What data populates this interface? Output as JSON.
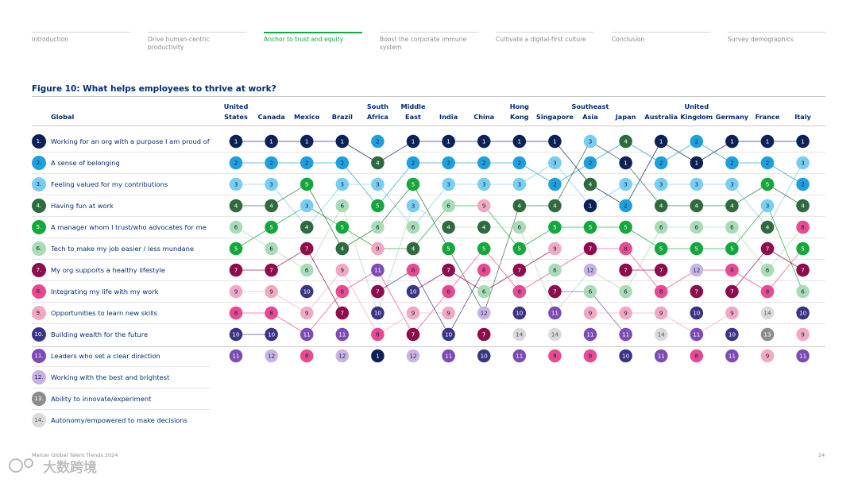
{
  "nav": {
    "tabs": [
      {
        "label": "Introduction",
        "active": false
      },
      {
        "label": "Drive human-centric productivity",
        "active": false
      },
      {
        "label": "Anchor to trust and equity",
        "active": true
      },
      {
        "label": "Boost the corporate immune system",
        "active": false
      },
      {
        "label": "Cultivate a digital-first culture",
        "active": false
      },
      {
        "label": "Conclusion",
        "active": false
      },
      {
        "label": "Survey demographics",
        "active": false
      }
    ]
  },
  "figure_title": "Figure 10: What helps employees to thrive at work?",
  "footer": "Mercer Global Talent Trends 2024",
  "page_number": "24",
  "watermark_text": "大数跨境",
  "chart_data": {
    "type": "table",
    "title": "Figure 10: What helps employees to thrive at work?",
    "row_header": "Global",
    "rank_colors": {
      "1": "#0b2258",
      "2": "#1fa0dd",
      "3": "#78cdf0",
      "4": "#2e6b3e",
      "5": "#14a83c",
      "6": "#a9dbb4",
      "7": "#8d0c4b",
      "8": "#e84a8e",
      "9": "#f3a8c2",
      "10": "#3b3486",
      "11": "#7c4bb5",
      "12": "#c9b3e2",
      "13": "#8c8c8c",
      "14": "#d9d9d9"
    },
    "factors": [
      "Working for an org with a purpose I am proud of",
      "A sense of belonging",
      "Feeling valued for my contributions",
      "Having fun at work",
      "A manager whom I trust/who advocates for me",
      "Tech to make my job easier / less mundane",
      "My org supports a healthy lifestyle",
      "Integrating my life with my work",
      "Opportunities to learn new skills",
      "Building wealth for the future",
      "Leaders who set a clear direction",
      "Working with the best and brightest",
      "Ability to innovate/experiment",
      "Autonomy/empowered to make decisions"
    ],
    "countries": [
      {
        "name": "United States",
        "ranks": [
          1,
          2,
          3,
          4,
          6,
          5,
          7,
          9,
          8,
          10,
          11
        ]
      },
      {
        "name": "Canada",
        "ranks": [
          1,
          2,
          3,
          4,
          5,
          6,
          7,
          9,
          8,
          10,
          12
        ]
      },
      {
        "name": "Mexico",
        "ranks": [
          1,
          2,
          5,
          3,
          4,
          7,
          6,
          10,
          9,
          11,
          8
        ]
      },
      {
        "name": "Brazil",
        "ranks": [
          1,
          2,
          3,
          6,
          5,
          4,
          9,
          8,
          7,
          11,
          12
        ]
      },
      {
        "name": "South Africa",
        "ranks": [
          2,
          4,
          3,
          5,
          6,
          9,
          11,
          7,
          10,
          8,
          1
        ]
      },
      {
        "name": "Middle East",
        "ranks": [
          1,
          2,
          5,
          3,
          6,
          4,
          8,
          10,
          9,
          7,
          12
        ]
      },
      {
        "name": "India",
        "ranks": [
          1,
          2,
          3,
          6,
          4,
          5,
          7,
          8,
          9,
          10,
          11
        ]
      },
      {
        "name": "China",
        "ranks": [
          1,
          2,
          3,
          9,
          4,
          5,
          8,
          6,
          12,
          7,
          10
        ]
      },
      {
        "name": "Hong Kong",
        "ranks": [
          1,
          2,
          3,
          4,
          6,
          5,
          7,
          8,
          10,
          14,
          11
        ]
      },
      {
        "name": "Singapore",
        "ranks": [
          1,
          3,
          2,
          4,
          5,
          9,
          6,
          7,
          11,
          14,
          8
        ]
      },
      {
        "name": "Southeast Asia",
        "ranks": [
          3,
          2,
          4,
          1,
          5,
          7,
          12,
          6,
          9,
          11,
          8
        ]
      },
      {
        "name": "Japan",
        "ranks": [
          4,
          1,
          3,
          2,
          5,
          8,
          7,
          6,
          9,
          11,
          10
        ]
      },
      {
        "name": "Australia",
        "ranks": [
          1,
          2,
          3,
          4,
          6,
          5,
          7,
          8,
          9,
          14,
          11
        ]
      },
      {
        "name": "United Kingdom",
        "ranks": [
          2,
          1,
          3,
          4,
          6,
          5,
          12,
          7,
          10,
          11,
          8
        ]
      },
      {
        "name": "Germany",
        "ranks": [
          1,
          2,
          3,
          4,
          6,
          5,
          8,
          7,
          9,
          10,
          11
        ]
      },
      {
        "name": "France",
        "ranks": [
          1,
          2,
          5,
          3,
          4,
          7,
          6,
          8,
          14,
          13,
          9
        ]
      },
      {
        "name": "Italy",
        "ranks": [
          1,
          3,
          2,
          4,
          8,
          5,
          7,
          6,
          10,
          9,
          11
        ]
      }
    ]
  }
}
